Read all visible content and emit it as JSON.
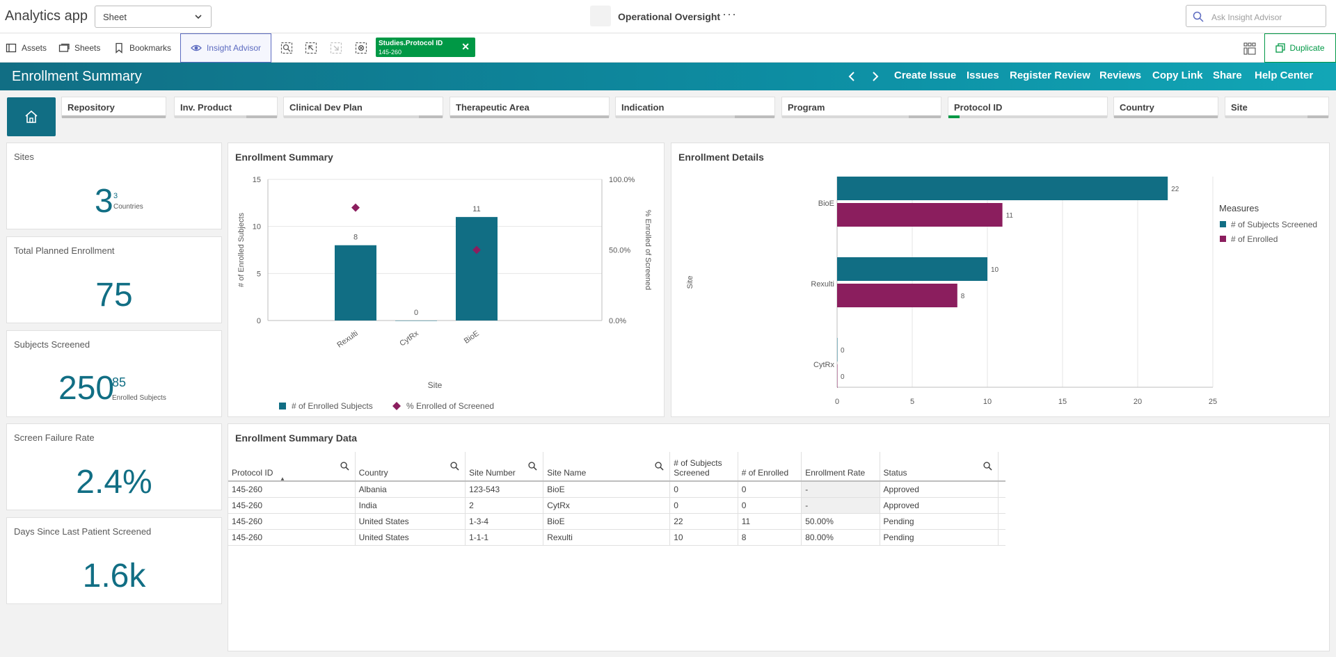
{
  "app": {
    "title": "Analytics app",
    "sheet_select": "Sheet",
    "sheet_name": "Operational Oversight",
    "ask_placeholder": "Ask Insight Advisor"
  },
  "toolbar": {
    "assets": "Assets",
    "sheets": "Sheets",
    "bookmarks": "Bookmarks",
    "insight_advisor": "Insight Advisor",
    "duplicate": "Duplicate",
    "selection_chip": {
      "field": "Studies.Protocol ID",
      "value": "145-260"
    }
  },
  "banner": {
    "title": "Enrollment Summary",
    "links": [
      "Create Issue",
      "Issues",
      "Register Review",
      "Reviews",
      "Copy Link",
      "Share",
      "Help Center"
    ]
  },
  "filters": [
    {
      "label": "Repository",
      "fill": 0
    },
    {
      "label": "Inv. Product",
      "fill": 0.7
    },
    {
      "label": "Clinical Dev Plan",
      "fill": 0.85
    },
    {
      "label": "Therapeutic Area",
      "fill": 0
    },
    {
      "label": "Indication",
      "fill": 0.75
    },
    {
      "label": "Program",
      "fill": 0.8
    },
    {
      "label": "Protocol ID",
      "fill": 0.07,
      "selected": true
    },
    {
      "label": "Country",
      "fill": 0
    },
    {
      "label": "Site",
      "fill": 0.2
    }
  ],
  "kpis": {
    "sites": {
      "title": "Sites",
      "value": "3",
      "sub_value": "3",
      "sub_label": "Countries"
    },
    "planned": {
      "title": "Total Planned Enrollment",
      "value": "75"
    },
    "screened": {
      "title": "Subjects Screened",
      "value": "250",
      "sub_value": "85",
      "sub_label": "Enrolled Subjects"
    },
    "failure": {
      "title": "Screen Failure Rate",
      "value": "2.4%"
    },
    "days": {
      "title": "Days Since Last Patient Screened",
      "value": "1.6k"
    }
  },
  "chart_data": [
    {
      "type": "bar",
      "title": "Enrollment Summary",
      "xlabel": "Site",
      "ylabel": "# of Enrolled Subjects",
      "y2label": "% Enrolled of Screened",
      "categories": [
        "Rexulti",
        "CytRx",
        "BioE"
      ],
      "series": [
        {
          "name": "# of Enrolled Subjects",
          "type": "bar",
          "values": [
            8,
            0,
            11
          ],
          "color": "#116e84"
        },
        {
          "name": "% Enrolled of Screened",
          "type": "scatter",
          "axis": "right",
          "values": [
            0.8,
            null,
            0.5
          ],
          "color": "#8b1e5e"
        }
      ],
      "ylim": [
        0,
        15
      ],
      "yticks": [
        "0",
        "5",
        "10",
        "15"
      ],
      "y2lim": [
        0,
        1
      ],
      "y2ticks": [
        "0.0%",
        "50.0%",
        "100.0%"
      ],
      "legend": "bottom",
      "grid": true
    },
    {
      "type": "bar",
      "orientation": "horizontal",
      "title": "Enrollment Details",
      "ylabel": "Site",
      "legend_title": "Measures",
      "categories": [
        "BioE",
        "Rexulti",
        "CytRx"
      ],
      "series": [
        {
          "name": "# of Subjects Screened",
          "values": [
            22,
            10,
            0
          ],
          "color": "#116e84"
        },
        {
          "name": "# of Enrolled",
          "values": [
            11,
            8,
            0
          ],
          "color": "#8b1e5e"
        }
      ],
      "xlim": [
        0,
        25
      ],
      "xticks": [
        "0",
        "5",
        "10",
        "15",
        "20",
        "25"
      ],
      "legend": "right",
      "grid": true
    }
  ],
  "table": {
    "title": "Enrollment Summary Data",
    "headers": [
      "Protocol ID",
      "Country",
      "Site Number",
      "Site Name",
      "# of Subjects Screened",
      "# of Enrolled",
      "Enrollment Rate",
      "Status"
    ],
    "rows": [
      [
        "145-260",
        "Albania",
        "123-543",
        "BioE",
        "0",
        "0",
        "-",
        "Approved"
      ],
      [
        "145-260",
        "India",
        "2",
        "CytRx",
        "0",
        "0",
        "-",
        "Approved"
      ],
      [
        "145-260",
        "United States",
        "1-3-4",
        "BioE",
        "22",
        "11",
        "50.00%",
        "Pending"
      ],
      [
        "145-260",
        "United States",
        "1-1-1",
        "Rexulti",
        "10",
        "8",
        "80.00%",
        "Pending"
      ]
    ]
  },
  "colors": {
    "accent": "#116e84",
    "secondary": "#8b1e5e",
    "selection": "#009845",
    "insight": "#5c6bc0"
  }
}
